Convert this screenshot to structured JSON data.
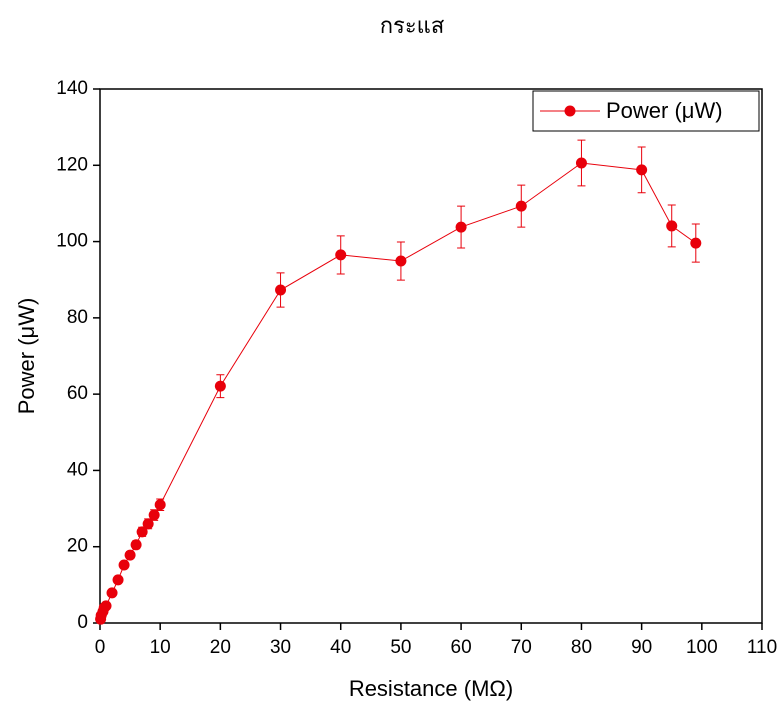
{
  "chart_data": {
    "type": "line",
    "title": "กระแส",
    "x_label": "Resistance (MΩ)",
    "y_label": "Power (μW)",
    "xlim": [
      0,
      110
    ],
    "ylim": [
      0,
      140
    ],
    "xticks": [
      0,
      10,
      20,
      30,
      40,
      50,
      60,
      70,
      80,
      90,
      100,
      110
    ],
    "yticks": [
      0,
      20,
      40,
      60,
      80,
      100,
      120,
      140
    ],
    "legend": "upper right",
    "series": [
      {
        "name": "Power (μW)",
        "color": "#e8000b",
        "x": [
          0.1,
          0.2,
          0.5,
          0.7,
          1,
          2,
          3,
          4,
          5,
          6,
          7,
          8,
          9,
          10,
          20,
          30,
          40,
          50,
          60,
          70,
          80,
          90,
          95,
          99
        ],
        "values": [
          1,
          2,
          3,
          4,
          4.5,
          7.9,
          11.3,
          15.2,
          17.8,
          20.5,
          23.9,
          26,
          28.3,
          31,
          62.1,
          87.3,
          96.5,
          94.9,
          103.8,
          109.3,
          120.6,
          118.8,
          104.1,
          99.6
        ],
        "errors": [
          0.1,
          0.1,
          0.2,
          0.2,
          0.2,
          0.4,
          0.6,
          0.8,
          0.9,
          1,
          1.2,
          1.3,
          1.4,
          1.5,
          3,
          4.5,
          5,
          5,
          5.5,
          5.5,
          6,
          6,
          5.5,
          5
        ]
      }
    ]
  }
}
